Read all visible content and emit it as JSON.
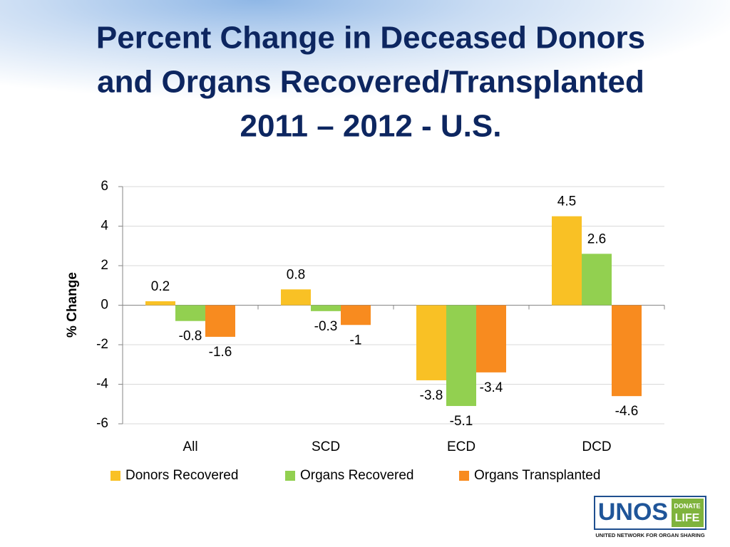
{
  "chart_data": {
    "type": "bar",
    "title": [
      "Percent Change in Deceased Donors",
      "and Organs Recovered/Transplanted",
      "2011 – 2012 - U.S."
    ],
    "ylabel": "% Change",
    "categories": [
      "All",
      "SCD",
      "ECD",
      "DCD"
    ],
    "series": [
      {
        "name": "Donors Recovered",
        "color": "#f9c125",
        "values": [
          0.2,
          0.8,
          -3.8,
          4.5
        ]
      },
      {
        "name": "Organs Recovered",
        "color": "#92d050",
        "values": [
          -0.8,
          -0.3,
          -5.1,
          2.6
        ]
      },
      {
        "name": "Organs Transplanted",
        "color": "#f88b1f",
        "values": [
          -1.6,
          -1,
          -3.4,
          -4.6
        ]
      }
    ],
    "ylim": [
      -6,
      6
    ],
    "yticks": [
      -6,
      -4,
      -2,
      0,
      2,
      4,
      6
    ],
    "grid": true,
    "legend": "bottom",
    "data_labels": true
  },
  "logo": {
    "name": "UNOS",
    "badge_top": "DONATE",
    "badge_bottom": "LIFE",
    "caption": "UNITED NETWORK FOR ORGAN SHARING"
  }
}
